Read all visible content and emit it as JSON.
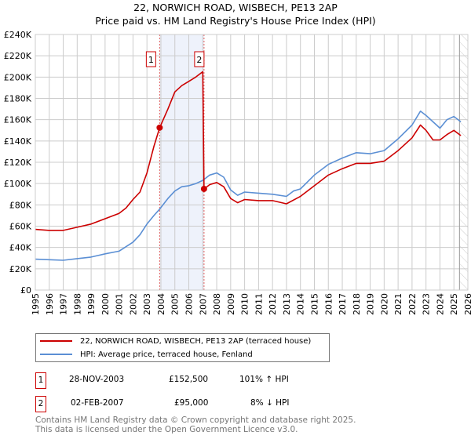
{
  "title_line1": "22, NORWICH ROAD, WISBECH, PE13 2AP",
  "title_line2": "Price paid vs. HM Land Registry's House Price Index (HPI)",
  "chart_data": {
    "type": "line",
    "title": "22, NORWICH ROAD, WISBECH, PE13 2AP — Price paid vs. HM Land Registry's House Price Index (HPI)",
    "xlabel": "",
    "ylabel": "",
    "xlim": [
      1995,
      2026
    ],
    "ylim": [
      0,
      240000
    ],
    "x_ticks": [
      "1995",
      "1996",
      "1997",
      "1998",
      "1999",
      "2000",
      "2001",
      "2002",
      "2003",
      "2004",
      "2005",
      "2006",
      "2007",
      "2008",
      "2009",
      "2010",
      "2011",
      "2012",
      "2013",
      "2014",
      "2015",
      "2016",
      "2017",
      "2018",
      "2019",
      "2020",
      "2021",
      "2022",
      "2023",
      "2024",
      "2025",
      "2026"
    ],
    "y_ticks": [
      "£0",
      "£20K",
      "£40K",
      "£60K",
      "£80K",
      "£100K",
      "£120K",
      "£140K",
      "£160K",
      "£180K",
      "£200K",
      "£220K",
      "£240K"
    ],
    "grid": true,
    "legend_placement": "below",
    "series": [
      {
        "name": "22, NORWICH ROAD, WISBECH, PE13 2AP (terraced house)",
        "color": "#cc0000",
        "x": [
          1995,
          1996,
          1997,
          1998,
          1999,
          2000,
          2001,
          2001.5,
          2002,
          2002.5,
          2003,
          2003.5,
          2003.91,
          2004.5,
          2005,
          2005.5,
          2006,
          2006.5,
          2007.0,
          2007.09,
          2007.5,
          2008,
          2008.5,
          2009,
          2009.5,
          2010,
          2011,
          2012,
          2013,
          2014,
          2015,
          2016,
          2017,
          2018,
          2019,
          2020,
          2021,
          2022,
          2022.6,
          2023,
          2023.5,
          2024,
          2024.5,
          2025,
          2025.5
        ],
        "y": [
          57000,
          56000,
          56000,
          59000,
          62000,
          67000,
          72000,
          77000,
          85000,
          92000,
          110000,
          135000,
          152500,
          170000,
          186000,
          192000,
          196000,
          200000,
          205000,
          95000,
          99000,
          101000,
          97000,
          86000,
          82000,
          85000,
          84000,
          84000,
          81000,
          88000,
          98000,
          108000,
          114000,
          119000,
          119000,
          121000,
          131000,
          143000,
          155000,
          150000,
          141000,
          141000,
          146000,
          150000,
          145000
        ]
      },
      {
        "name": "HPI: Average price, terraced house, Fenland",
        "color": "#5b8fd4",
        "x": [
          1995,
          1996,
          1997,
          1998,
          1999,
          2000,
          2001,
          2002,
          2002.5,
          2003,
          2003.5,
          2003.91,
          2004.5,
          2005,
          2005.5,
          2006,
          2006.5,
          2007,
          2007.5,
          2008,
          2008.5,
          2009,
          2009.5,
          2010,
          2011,
          2012,
          2013,
          2013.5,
          2014,
          2015,
          2016,
          2017,
          2018,
          2019,
          2020,
          2021,
          2022,
          2022.6,
          2023,
          2023.5,
          2024,
          2024.5,
          2025,
          2025.5
        ],
        "y": [
          29000,
          28500,
          28000,
          29500,
          31000,
          34000,
          36500,
          45000,
          52000,
          62000,
          70000,
          76000,
          86000,
          93000,
          97000,
          98000,
          100000,
          103000,
          108000,
          110000,
          106000,
          94000,
          89000,
          92000,
          91000,
          90000,
          88000,
          93000,
          95000,
          108000,
          118000,
          124000,
          129000,
          128000,
          131000,
          142000,
          155000,
          168000,
          164000,
          158000,
          152000,
          160000,
          163000,
          158000
        ]
      }
    ],
    "annotations": [
      {
        "label": "1",
        "x": 2003.91,
        "y": 152500
      },
      {
        "label": "2",
        "x": 2007.09,
        "y": 95000
      }
    ],
    "shaded_range": [
      2003.91,
      2007.09
    ],
    "hatched_from": 2025.4
  },
  "legend": [
    {
      "label": "22, NORWICH ROAD, WISBECH, PE13 2AP (terraced house)",
      "color": "#cc0000"
    },
    {
      "label": "HPI: Average price, terraced house, Fenland",
      "color": "#5b8fd4"
    }
  ],
  "transactions": [
    {
      "num": "1",
      "date": "28-NOV-2003",
      "price": "£152,500",
      "hpi": "101% ↑ HPI"
    },
    {
      "num": "2",
      "date": "02-FEB-2007",
      "price": "£95,000",
      "hpi": "8% ↓ HPI"
    }
  ],
  "footer_line1": "Contains HM Land Registry data © Crown copyright and database right 2025.",
  "footer_line2": "This data is licensed under the Open Government Licence v3.0."
}
